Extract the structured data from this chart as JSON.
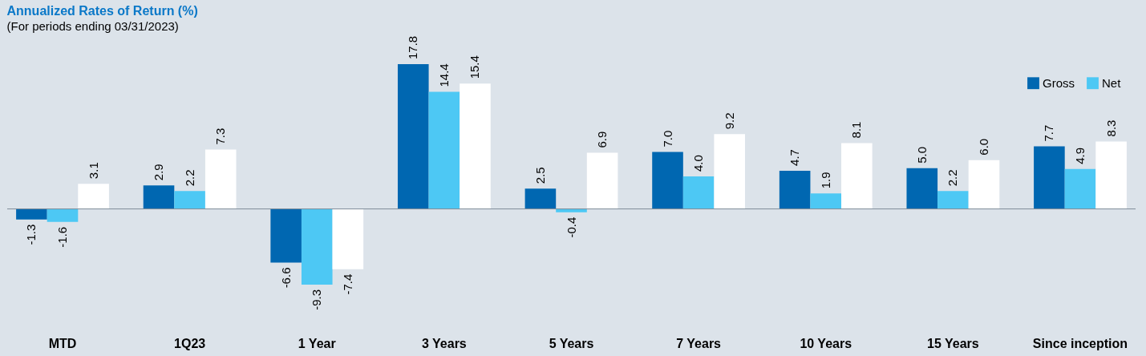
{
  "chart_data": {
    "type": "bar",
    "title": "Annualized Rates of Return (%)",
    "subtitle": "(For periods ending 03/31/2023)",
    "categories": [
      "MTD",
      "1Q23",
      "1 Year",
      "3 Years",
      "5 Years",
      "7 Years",
      "10 Years",
      "15 Years",
      "Since inception"
    ],
    "series": [
      {
        "name": "Gross",
        "color": "#0067b1",
        "values": [
          -1.3,
          2.9,
          -6.6,
          17.8,
          2.5,
          7.0,
          4.7,
          5.0,
          7.7
        ],
        "value_labels": [
          "-1.3",
          "2.9",
          "-6.6",
          "17.8",
          "2.5",
          "7.0",
          "4.7",
          "5.0",
          "7.7"
        ]
      },
      {
        "name": "Net",
        "color": "#4dc8f4",
        "values": [
          -1.6,
          2.2,
          -9.3,
          14.4,
          -0.4,
          4.0,
          1.9,
          2.2,
          4.9
        ],
        "value_labels": [
          "-1.6",
          "2.2",
          "-9.3",
          "14.4",
          "-0.4",
          "4.0",
          "1.9",
          "2.2",
          "4.9"
        ]
      },
      {
        "color": "#ffffff",
        "values": [
          3.1,
          7.3,
          -7.4,
          15.4,
          6.9,
          9.2,
          8.1,
          6.0,
          8.3
        ],
        "value_labels": [
          "3.1",
          "7.3",
          "-7.4",
          "15.4",
          "6.9",
          "9.2",
          "8.1",
          "6.0",
          "8.3"
        ]
      }
    ],
    "legend": "top right"
  }
}
